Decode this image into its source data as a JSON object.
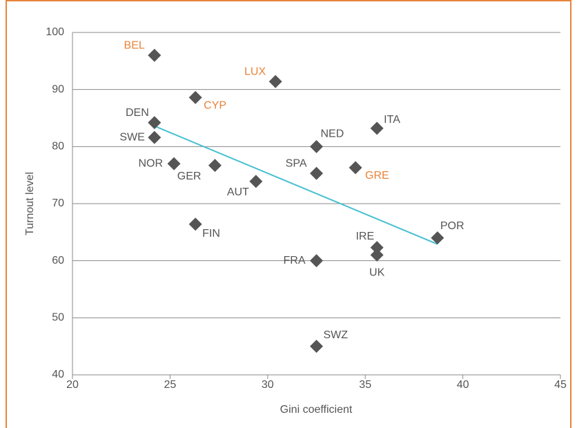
{
  "chart_data": {
    "type": "scatter",
    "x_label": "Gini coefficient",
    "y_label": "Turnout level",
    "labels": [
      "BEL",
      "LUX",
      "CYP",
      "DEN",
      "ITA",
      "SWE",
      "NED",
      "NOR",
      "GER",
      "GRE",
      "SPA",
      "AUT",
      "FIN",
      "POR",
      "IRE",
      "UK",
      "FRA",
      "SWZ"
    ],
    "x": [
      24.2,
      30.4,
      26.3,
      24.2,
      35.6,
      24.2,
      32.5,
      25.2,
      27.3,
      34.5,
      32.5,
      29.4,
      26.3,
      38.7,
      35.6,
      35.6,
      32.5,
      32.5
    ],
    "y": [
      96,
      91.4,
      88.6,
      84.2,
      83.2,
      81.6,
      80,
      77,
      76.7,
      76.3,
      75.3,
      73.9,
      66.4,
      64,
      62.3,
      61,
      60,
      45
    ],
    "color": "#555555",
    "label_colors": [
      "#e8833a",
      "#e8833a",
      "#e8833a",
      "#555555",
      "#555555",
      "#555555",
      "#555555",
      "#555555",
      "#555555",
      "#e8833a",
      "#555555",
      "#555555",
      "#555555",
      "#555555",
      "#555555",
      "#555555",
      "#555555",
      "#555555"
    ],
    "trendline": {
      "x": [
        24.2,
        38.7
      ],
      "y": [
        83.6,
        62.9
      ],
      "color": "#45bfd0"
    },
    "xlim": [
      20,
      45
    ],
    "xticks": [
      20,
      25,
      30,
      35,
      40,
      45
    ],
    "ylim": [
      40,
      100
    ],
    "yticks": [
      40,
      50,
      60,
      70,
      80,
      90,
      100
    ],
    "grid": true
  }
}
